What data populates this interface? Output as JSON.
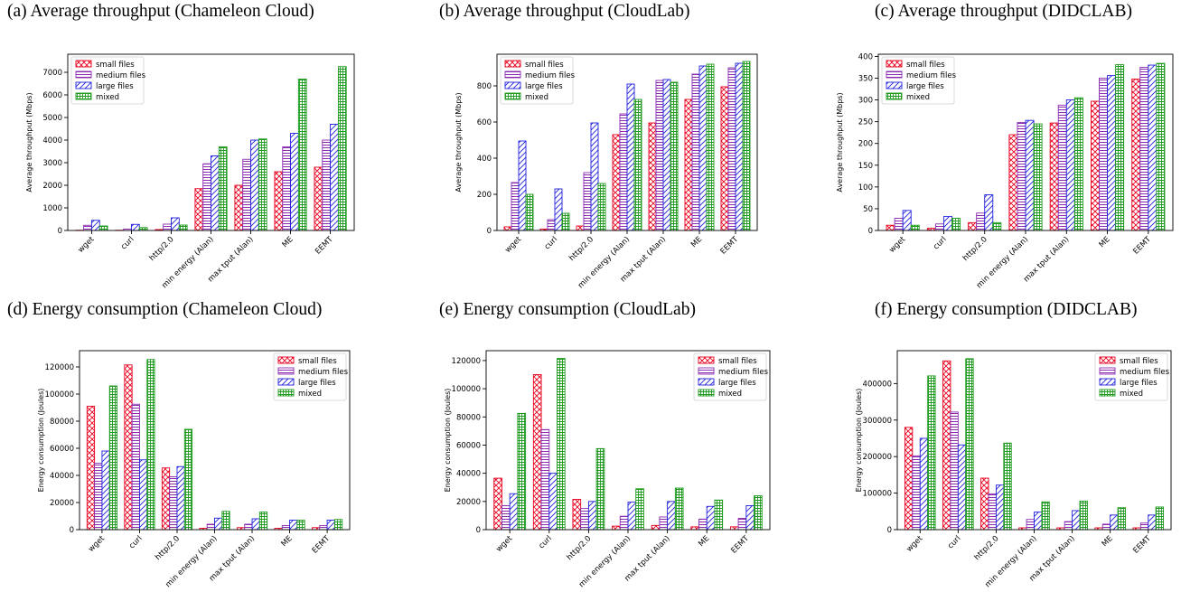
{
  "figure": {
    "legend_labels": [
      "small files",
      "medium files",
      "large files",
      "mixed"
    ],
    "series_colors": [
      "#e8001c",
      "#8a2bb0",
      "#1f1fe0",
      "#1e9a1e"
    ],
    "series_patterns": [
      "crosshatch",
      "horizontal",
      "diagonal",
      "grid"
    ]
  },
  "chart_data": [
    {
      "type": "bar",
      "caption": "(a) Average throughput (Chameleon Cloud)",
      "ylabel": "Average throughput (Mbps)",
      "categories": [
        "wget",
        "curl",
        "http/2.0",
        "min energy (Alan)",
        "max tput (Alan)",
        "ME",
        "EEMT"
      ],
      "ylim": [
        0,
        7800
      ],
      "yticks": [
        0,
        1000,
        2000,
        3000,
        4000,
        5000,
        6000,
        7000
      ],
      "legend_position": "top-left",
      "series": [
        {
          "name": "small files",
          "values": [
            10,
            10,
            40,
            1850,
            2000,
            2600,
            2800
          ]
        },
        {
          "name": "medium files",
          "values": [
            230,
            60,
            280,
            2950,
            3150,
            3700,
            4000
          ]
        },
        {
          "name": "large files",
          "values": [
            450,
            270,
            560,
            3300,
            4000,
            4300,
            4700
          ]
        },
        {
          "name": "mixed",
          "values": [
            200,
            130,
            240,
            3700,
            4050,
            6700,
            7250
          ]
        }
      ]
    },
    {
      "type": "bar",
      "caption": "(b) Average throughput (CloudLab)",
      "ylabel": "Average throughput (Mbps)",
      "categories": [
        "wget",
        "curl",
        "http/2.0",
        "min energy (Alan)",
        "max tput (Alan)",
        "ME",
        "EEMT"
      ],
      "ylim": [
        0,
        975
      ],
      "yticks": [
        0,
        200,
        400,
        600,
        800
      ],
      "legend_position": "top-left",
      "series": [
        {
          "name": "small files",
          "values": [
            20,
            8,
            25,
            530,
            595,
            725,
            795
          ]
        },
        {
          "name": "medium files",
          "values": [
            265,
            60,
            320,
            645,
            830,
            865,
            900
          ]
        },
        {
          "name": "large files",
          "values": [
            495,
            230,
            595,
            810,
            835,
            910,
            925
          ]
        },
        {
          "name": "mixed",
          "values": [
            200,
            95,
            260,
            725,
            820,
            920,
            935
          ]
        }
      ]
    },
    {
      "type": "bar",
      "caption": "(c) Average throughput (DIDCLAB)",
      "ylabel": "Average throughput (Mbps)",
      "categories": [
        "wget",
        "curl",
        "http/2.0",
        "min energy (Alan)",
        "max tput (Alan)",
        "ME",
        "EEMT"
      ],
      "ylim": [
        0,
        405
      ],
      "yticks": [
        0,
        50,
        100,
        150,
        200,
        250,
        300,
        350,
        400
      ],
      "legend_position": "top-left",
      "series": [
        {
          "name": "small files",
          "values": [
            12,
            5,
            18,
            220,
            247,
            297,
            348
          ]
        },
        {
          "name": "medium files",
          "values": [
            28,
            15,
            40,
            248,
            288,
            350,
            375
          ]
        },
        {
          "name": "large files",
          "values": [
            46,
            32,
            82,
            253,
            300,
            356,
            380
          ]
        },
        {
          "name": "mixed",
          "values": [
            12,
            28,
            18,
            245,
            305,
            381,
            384
          ]
        }
      ]
    },
    {
      "type": "bar",
      "caption": "(d) Energy consumption (Chameleon Cloud)",
      "ylabel": "Energy consumption (Joules)",
      "categories": [
        "wget",
        "curl",
        "http/2.0",
        "min energy (Alan)",
        "max tput (Alan)",
        "ME",
        "EEMT"
      ],
      "ylim": [
        0,
        132000
      ],
      "yticks": [
        0,
        20000,
        40000,
        60000,
        80000,
        100000,
        120000
      ],
      "legend_position": "top-right",
      "series": [
        {
          "name": "small files",
          "values": [
            91000,
            121500,
            45500,
            1000,
            1500,
            1000,
            1500
          ]
        },
        {
          "name": "medium files",
          "values": [
            49000,
            92500,
            39000,
            4000,
            4000,
            3000,
            3000
          ]
        },
        {
          "name": "large files",
          "values": [
            58000,
            51500,
            46500,
            8500,
            8000,
            7000,
            7000
          ]
        },
        {
          "name": "mixed",
          "values": [
            106000,
            125500,
            74000,
            13500,
            13000,
            7000,
            7500
          ]
        }
      ]
    },
    {
      "type": "bar",
      "caption": "(e) Energy consumption (CloudLab)",
      "ylabel": "Energy consumption (Joules)",
      "categories": [
        "wget",
        "curl",
        "http/2.0",
        "min energy (Alan)",
        "max tput (Alan)",
        "ME",
        "EEMT"
      ],
      "ylim": [
        0,
        127000
      ],
      "yticks": [
        0,
        20000,
        40000,
        60000,
        80000,
        100000,
        120000
      ],
      "legend_position": "top-right",
      "series": [
        {
          "name": "small files",
          "values": [
            36500,
            110000,
            21500,
            2500,
            3000,
            2000,
            2000
          ]
        },
        {
          "name": "medium files",
          "values": [
            17000,
            71000,
            15000,
            9500,
            9000,
            7500,
            8000
          ]
        },
        {
          "name": "large files",
          "values": [
            25500,
            40000,
            20000,
            19500,
            20000,
            16500,
            17000
          ]
        },
        {
          "name": "mixed",
          "values": [
            82500,
            121500,
            57500,
            29000,
            29500,
            21000,
            24000
          ]
        }
      ]
    },
    {
      "type": "bar",
      "caption": "(f) Energy consumption (DIDCLAB)",
      "ylabel": "Energy consumption (Joules)",
      "categories": [
        "wget",
        "curl",
        "http/2.0",
        "min energy (Alan)",
        "max tput (Alan)",
        "ME",
        "EEMT"
      ],
      "ylim": [
        0,
        490000
      ],
      "yticks": [
        0,
        100000,
        200000,
        300000,
        400000
      ],
      "legend_position": "top-right",
      "series": [
        {
          "name": "small files",
          "values": [
            280000,
            462000,
            141000,
            5000,
            5000,
            5000,
            5000
          ]
        },
        {
          "name": "medium files",
          "values": [
            202000,
            322000,
            98000,
            28000,
            22000,
            15000,
            18000
          ]
        },
        {
          "name": "large files",
          "values": [
            250000,
            232000,
            122000,
            48000,
            52000,
            40000,
            40000
          ]
        },
        {
          "name": "mixed",
          "values": [
            421000,
            468000,
            237000,
            76000,
            78000,
            60000,
            62000
          ]
        }
      ]
    }
  ]
}
